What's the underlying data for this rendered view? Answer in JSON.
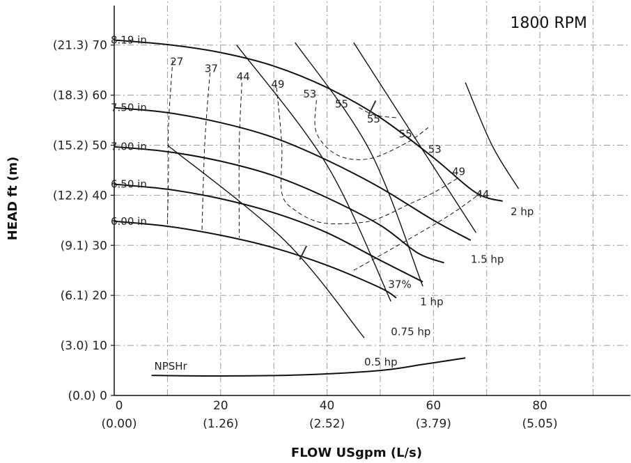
{
  "chart_data": {
    "type": "line",
    "rpm_label": "1800 RPM",
    "xlabel": "FLOW USgpm (L/s)",
    "ylabel": "HEAD ft (m)",
    "xlim": [
      0,
      97
    ],
    "ylim": [
      0,
      79
    ],
    "x_ticks": [
      {
        "value": 0,
        "label": "0",
        "sub": "(0.00)"
      },
      {
        "value": 20,
        "label": "20",
        "sub": "(1.26)"
      },
      {
        "value": 40,
        "label": "40",
        "sub": "(2.52)"
      },
      {
        "value": 60,
        "label": "60",
        "sub": "(3.79)"
      },
      {
        "value": 80,
        "label": "80",
        "sub": "(5.05)"
      }
    ],
    "y_ticks": [
      {
        "value": 0,
        "label": "(0.0) 0"
      },
      {
        "value": 10,
        "label": "(3.0) 10"
      },
      {
        "value": 20,
        "label": "(6.1) 20"
      },
      {
        "value": 30,
        "label": "(9.1) 30"
      },
      {
        "value": 40,
        "label": "(12.2) 40"
      },
      {
        "value": 50,
        "label": "(15.2) 50"
      },
      {
        "value": 60,
        "label": "(18.3) 60"
      },
      {
        "value": 70,
        "label": "(21.3) 70"
      }
    ],
    "grid": true,
    "series": [
      {
        "name": "8.19 in",
        "points": [
          [
            0,
            71
          ],
          [
            10,
            70.1
          ],
          [
            20,
            68.5
          ],
          [
            30,
            65.8
          ],
          [
            40,
            61.5
          ],
          [
            50,
            55.5
          ],
          [
            60,
            47.5
          ],
          [
            68,
            40.5
          ],
          [
            73,
            38.8
          ]
        ]
      },
      {
        "name": "7.50 in",
        "points": [
          [
            0,
            57.5
          ],
          [
            10,
            56.5
          ],
          [
            20,
            54.5
          ],
          [
            30,
            51.5
          ],
          [
            40,
            47
          ],
          [
            50,
            41.5
          ],
          [
            60,
            35
          ],
          [
            67,
            31
          ]
        ]
      },
      {
        "name": "7.00 in",
        "points": [
          [
            0,
            49.7
          ],
          [
            10,
            48.7
          ],
          [
            20,
            46.8
          ],
          [
            30,
            43.9
          ],
          [
            40,
            39.5
          ],
          [
            50,
            34
          ],
          [
            57,
            28.5
          ],
          [
            62,
            26.5
          ]
        ]
      },
      {
        "name": "6.50 in",
        "points": [
          [
            0,
            42.2
          ],
          [
            10,
            41.2
          ],
          [
            20,
            39.3
          ],
          [
            30,
            36.5
          ],
          [
            40,
            32.5
          ],
          [
            50,
            27
          ],
          [
            58,
            22.7
          ]
        ]
      },
      {
        "name": "6.00 in",
        "points": [
          [
            0,
            34.8
          ],
          [
            10,
            33.8
          ],
          [
            20,
            32
          ],
          [
            30,
            29.5
          ],
          [
            40,
            26
          ],
          [
            50,
            21.5
          ],
          [
            53,
            19.5
          ]
        ]
      },
      {
        "name": "NPSHr",
        "points": [
          [
            7,
            4
          ],
          [
            20,
            3.9
          ],
          [
            35,
            4.1
          ],
          [
            50,
            5
          ],
          [
            58,
            6.2
          ],
          [
            66,
            7.5
          ]
        ]
      }
    ],
    "power_curves": [
      {
        "label": "0.5 hp",
        "points": [
          [
            10,
            50
          ],
          [
            32,
            31
          ],
          [
            47,
            11.5
          ]
        ],
        "label_pos": [
          47,
          6
        ]
      },
      {
        "label": "0.75 hp",
        "points": [
          [
            23,
            70
          ],
          [
            40,
            46
          ],
          [
            52,
            18.8
          ]
        ],
        "label_pos": [
          52,
          12
        ]
      },
      {
        "label": "1 hp",
        "points": [
          [
            34,
            70.5
          ],
          [
            48,
            49
          ],
          [
            58,
            21.8
          ]
        ],
        "label_pos": [
          57.5,
          18
        ]
      },
      {
        "label": "1.5 hp",
        "points": [
          [
            45,
            70.5
          ],
          [
            58,
            49
          ],
          [
            68,
            32.5
          ]
        ],
        "label_pos": [
          67,
          26.5
        ]
      },
      {
        "label": "2 hp",
        "points": [
          [
            66,
            62.5
          ],
          [
            71,
            50
          ],
          [
            76,
            41.3
          ]
        ],
        "label_pos": [
          74.5,
          36
        ]
      }
    ],
    "efficiency": [
      {
        "label": "27",
        "x": 10.5,
        "y": 66,
        "points": [
          [
            11,
            67
          ],
          [
            10.2,
            54
          ],
          [
            10.2,
            45
          ],
          [
            10,
            34
          ]
        ]
      },
      {
        "label": "37",
        "x": 17,
        "y": 64.6,
        "points": [
          [
            18,
            64.5
          ],
          [
            17,
            50
          ],
          [
            16.5,
            33
          ]
        ]
      },
      {
        "label": "44",
        "x": 23,
        "y": 63,
        "points": [
          [
            24,
            62.5
          ],
          [
            23.5,
            50
          ],
          [
            23.5,
            31.5
          ]
        ]
      },
      {
        "label": "49",
        "x": 29.5,
        "y": 61.5,
        "points": [
          [
            30.5,
            61.5
          ],
          [
            31.5,
            50
          ],
          [
            31.5,
            40.5
          ],
          [
            34,
            37
          ],
          [
            39,
            34.5
          ],
          [
            46,
            34.5
          ],
          [
            50,
            35.5
          ],
          [
            55,
            38
          ],
          [
            60,
            40.5
          ],
          [
            65,
            43.7
          ]
        ]
      },
      {
        "label": "53",
        "x": 35.5,
        "y": 59.5,
        "points": [
          [
            38,
            59
          ],
          [
            38,
            52.5
          ],
          [
            42,
            48
          ],
          [
            48,
            47.3
          ],
          [
            55,
            50.5
          ],
          [
            59,
            53.5
          ]
        ]
      },
      {
        "label": "55",
        "x": 41.5,
        "y": 57.5,
        "points": [
          [
            46,
            57.5
          ],
          [
            49,
            56
          ],
          [
            53,
            55.5
          ]
        ]
      },
      {
        "label": "55",
        "x": 47.5,
        "y": 54.5,
        "points": []
      },
      {
        "label": "55",
        "x": 53.5,
        "y": 51.5,
        "points": []
      },
      {
        "label": "53",
        "x": 59,
        "y": 48.5,
        "points": []
      },
      {
        "label": "49",
        "x": 63.5,
        "y": 44,
        "points": []
      },
      {
        "label": "44",
        "x": 68,
        "y": 39.5,
        "points": [
          [
            45,
            25
          ],
          [
            55,
            31
          ],
          [
            63,
            36
          ],
          [
            69,
            40.5
          ]
        ]
      },
      {
        "label": "37%",
        "x": 51.5,
        "y": 21.5,
        "points": []
      }
    ],
    "bep_markers": [
      [
        48.5,
        57.5
      ],
      [
        35.5,
        28.5
      ]
    ]
  }
}
